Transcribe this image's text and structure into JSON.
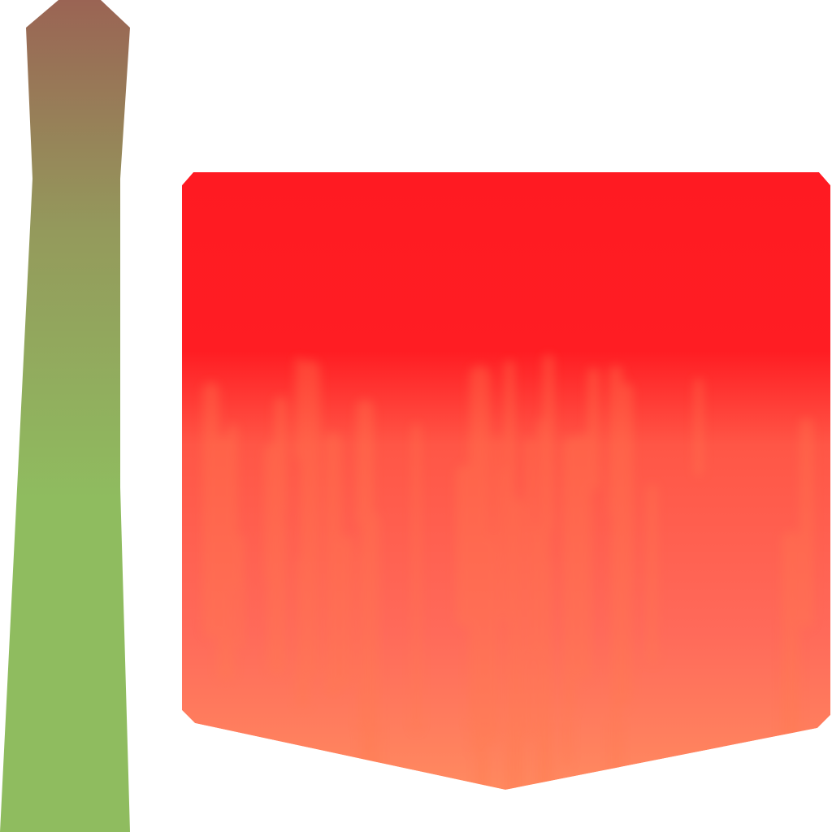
{
  "texture_atlas": {
    "background_color": "#ffffff",
    "stem": {
      "colors": {
        "top": "#9a6454",
        "middle": "#949a5c",
        "bottom": "#8fbc5f"
      }
    },
    "petal": {
      "colors": {
        "top": "#ff1a22",
        "upper_band": "#ff1d23",
        "middle": "#ff5646",
        "lower": "#ff6a5a",
        "bottom": "#ff8a60",
        "streak": "#ff7a50"
      }
    }
  }
}
